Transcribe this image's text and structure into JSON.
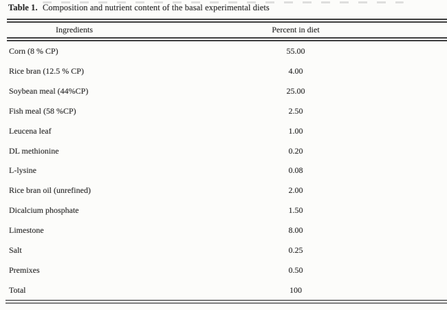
{
  "document": {
    "caption": {
      "label": "Table 1.",
      "text": "Composition and nutrient content of the basal experimental diets"
    },
    "columns": [
      "Ingredients",
      "Percent in diet"
    ],
    "rows": [
      {
        "ingredient": "Corn (8 % CP)",
        "percent": "55.00"
      },
      {
        "ingredient": "Rice bran (12.5 % CP)",
        "percent": "4.00"
      },
      {
        "ingredient": "Soybean meal (44%CP)",
        "percent": "25.00"
      },
      {
        "ingredient": "Fish meal (58 %CP)",
        "percent": "2.50"
      },
      {
        "ingredient": "Leucena leaf",
        "percent": "1.00"
      },
      {
        "ingredient": "DL methionine",
        "percent": "0.20"
      },
      {
        "ingredient": "L-lysine",
        "percent": "0.08"
      },
      {
        "ingredient": "Rice bran oil (unrefined)",
        "percent": "2.00"
      },
      {
        "ingredient": "Dicalcium phosphate",
        "percent": "1.50"
      },
      {
        "ingredient": "Limestone",
        "percent": "8.00"
      },
      {
        "ingredient": "Salt",
        "percent": "0.25"
      },
      {
        "ingredient": "Premixes",
        "percent": "0.50"
      },
      {
        "ingredient": "Total",
        "percent": "100"
      }
    ],
    "colors": {
      "text": "#2b2b2b",
      "rule_dark": "#3f3f3f",
      "rule_gray": "#7d7d7d",
      "page_bg": "#fcfcfa"
    }
  }
}
